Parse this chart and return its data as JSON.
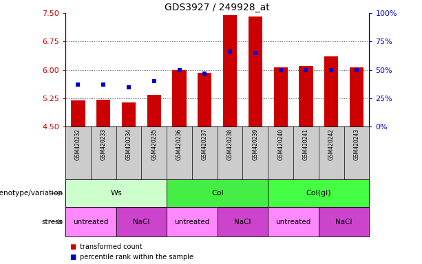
{
  "title": "GDS3927 / 249928_at",
  "samples": [
    "GSM420232",
    "GSM420233",
    "GSM420234",
    "GSM420235",
    "GSM420236",
    "GSM420237",
    "GSM420238",
    "GSM420239",
    "GSM420240",
    "GSM420241",
    "GSM420242",
    "GSM420243"
  ],
  "bar_values": [
    5.19,
    5.22,
    5.15,
    5.35,
    6.0,
    5.93,
    7.45,
    7.42,
    6.07,
    6.1,
    6.35,
    6.07
  ],
  "bar_base": 4.5,
  "percentile_values": [
    37,
    37,
    35,
    40,
    50,
    47,
    66,
    65,
    50,
    50,
    50,
    50
  ],
  "ylim_left": [
    4.5,
    7.5
  ],
  "ylim_right": [
    0,
    100
  ],
  "yticks_left": [
    4.5,
    5.25,
    6.0,
    6.75,
    7.5
  ],
  "yticks_right": [
    0,
    25,
    50,
    75,
    100
  ],
  "bar_color": "#cc0000",
  "dot_color": "#0000cc",
  "grid_color": "#555555",
  "genotype_groups": [
    {
      "label": "Ws",
      "start": 0,
      "end": 3,
      "color": "#ccffcc"
    },
    {
      "label": "Col",
      "start": 4,
      "end": 7,
      "color": "#44ee44"
    },
    {
      "label": "Col(gl)",
      "start": 8,
      "end": 11,
      "color": "#44ff44"
    }
  ],
  "stress_groups": [
    {
      "label": "untreated",
      "start": 0,
      "end": 1,
      "color": "#ff88ff"
    },
    {
      "label": "NaCl",
      "start": 2,
      "end": 3,
      "color": "#cc44cc"
    },
    {
      "label": "untreated",
      "start": 4,
      "end": 5,
      "color": "#ff88ff"
    },
    {
      "label": "NaCl",
      "start": 6,
      "end": 7,
      "color": "#cc44cc"
    },
    {
      "label": "untreated",
      "start": 8,
      "end": 9,
      "color": "#ff88ff"
    },
    {
      "label": "NaCl",
      "start": 10,
      "end": 11,
      "color": "#cc44cc"
    }
  ],
  "legend_items": [
    {
      "label": "transformed count",
      "color": "#cc0000"
    },
    {
      "label": "percentile rank within the sample",
      "color": "#0000cc"
    }
  ],
  "tick_label_color_left": "#cc0000",
  "tick_label_color_right": "#0000cc",
  "row_label_genotype": "genotype/variation",
  "row_label_stress": "stress",
  "bg_color": "#ffffff",
  "tick_area_bg": "#cccccc",
  "arrow_color": "#888888"
}
